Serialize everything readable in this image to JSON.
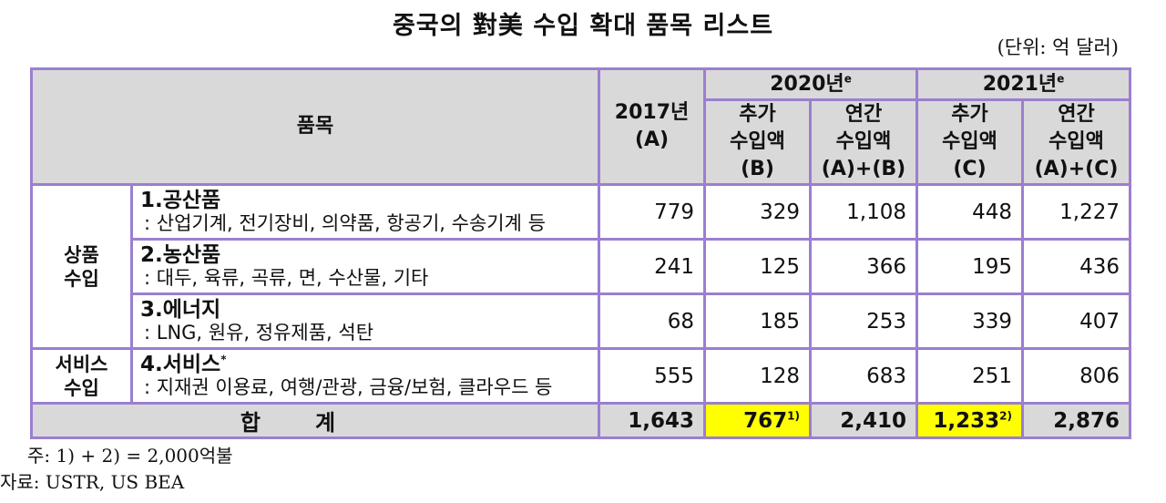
{
  "title": "중국의 對美 수입 확대 품목 리스트",
  "unit": "(단위: 억 달러)",
  "header": {
    "item": "품목",
    "y2017_line1": "2017년",
    "y2017_line2": "(A)",
    "y2020": "2020년",
    "y2021": "2021년",
    "sup_e": "e",
    "add_line1": "추가",
    "add_line2": "수입액",
    "add_b": "(B)",
    "add_c": "(C)",
    "annual_line1": "연간",
    "annual_line2": "수입액",
    "annual_ab": "(A)+(B)",
    "annual_ac": "(A)+(C)"
  },
  "categories": {
    "goods_line1": "상품",
    "goods_line2": "수입",
    "services_line1": "서비스",
    "services_line2": "수입"
  },
  "rows": [
    {
      "name": "1.공산품",
      "desc": ": 산업기계, 전기장비, 의약품, 항공기, 수송기계 등",
      "a": "779",
      "b": "329",
      "ab": "1,108",
      "c": "448",
      "ac": "1,227"
    },
    {
      "name": "2.농산품",
      "desc": ": 대두, 육류, 곡류, 면, 수산물, 기타",
      "a": "241",
      "b": "125",
      "ab": "366",
      "c": "195",
      "ac": "436"
    },
    {
      "name": "3.에너지",
      "desc": ": LNG, 원유, 정유제품, 석탄",
      "a": "68",
      "b": "185",
      "ab": "253",
      "c": "339",
      "ac": "407"
    },
    {
      "name": "4.서비스",
      "name_sup": "*",
      "desc": ": 지재권 이용료, 여행/관광, 금융/보험, 클라우드 등",
      "a": "555",
      "b": "128",
      "ab": "683",
      "c": "251",
      "ac": "806"
    }
  ],
  "total": {
    "label": "합계",
    "a": "1,643",
    "b": "767",
    "b_sup": "1)",
    "ab": "2,410",
    "c": "1,233",
    "c_sup": "2)",
    "ac": "2,876"
  },
  "notes": {
    "note1": "주: 1) + 2) = 2,000억불",
    "source": "자료: USTR, US BEA"
  },
  "colors": {
    "border": "#9b7fd0",
    "header_bg": "#d9d9d9",
    "highlight": "#ffff00"
  }
}
